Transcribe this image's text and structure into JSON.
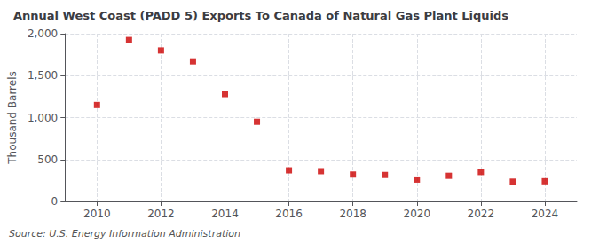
{
  "chart_data": {
    "type": "scatter",
    "title": "Annual West Coast (PADD 5) Exports To Canada of Natural Gas Plant Liquids",
    "ylabel": "Thousand Barrels",
    "annotation": "Source: U.S. Energy Information Administration",
    "x": [
      2010,
      2011,
      2012,
      2013,
      2014,
      2015,
      2016,
      2017,
      2018,
      2019,
      2020,
      2021,
      2022,
      2023,
      2024
    ],
    "values": [
      1150,
      1925,
      1800,
      1670,
      1280,
      950,
      370,
      360,
      320,
      315,
      260,
      305,
      350,
      235,
      240
    ],
    "color": "#cc0000",
    "marker": "square",
    "xlim": [
      2009,
      2025
    ],
    "xticks": [
      2010,
      2012,
      2014,
      2016,
      2018,
      2020,
      2022,
      2024
    ],
    "ylim": [
      0,
      2000
    ],
    "yticks": [
      0,
      500,
      {
        "value": 1000,
        "label": "1,000"
      },
      {
        "value": 1500,
        "label": "1,500"
      },
      {
        "value": 2000,
        "label": "2,000"
      }
    ],
    "grid": true
  }
}
